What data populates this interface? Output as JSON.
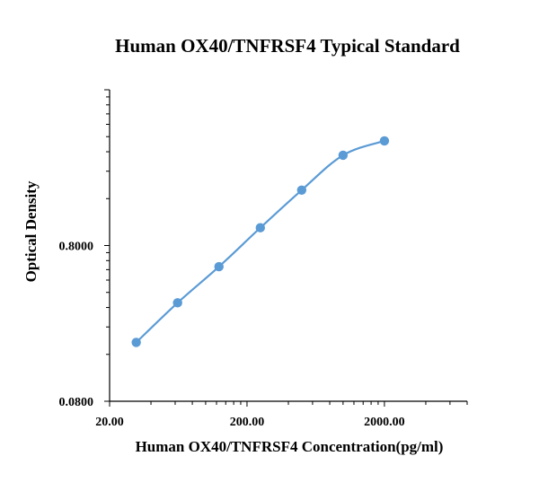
{
  "chart_data": {
    "type": "scatter",
    "title": "Human OX40/TNFRSF4 Typical Standard",
    "xlabel": "Human OX40/TNFRSF4 Concentration(pg/ml)",
    "ylabel": "Optical Density",
    "x_scale": "log",
    "y_scale": "log",
    "xlim": [
      20,
      8000
    ],
    "ylim": [
      0.08,
      8
    ],
    "x_tick_labels": [
      "20.00",
      "200.00",
      "2000.00"
    ],
    "x_tick_values": [
      20,
      200,
      2000
    ],
    "y_tick_labels": [
      "0.0800",
      "0.8000"
    ],
    "y_tick_values": [
      0.08,
      0.8
    ],
    "legend": "none",
    "grid": false,
    "series": [
      {
        "color": "#5b9bd5",
        "marker": "circle",
        "line": "smooth",
        "x": [
          31.25,
          62.5,
          125,
          250,
          500,
          1000,
          2000
        ],
        "y": [
          0.191,
          0.343,
          0.585,
          1.04,
          1.815,
          3.04,
          3.76
        ]
      }
    ]
  }
}
